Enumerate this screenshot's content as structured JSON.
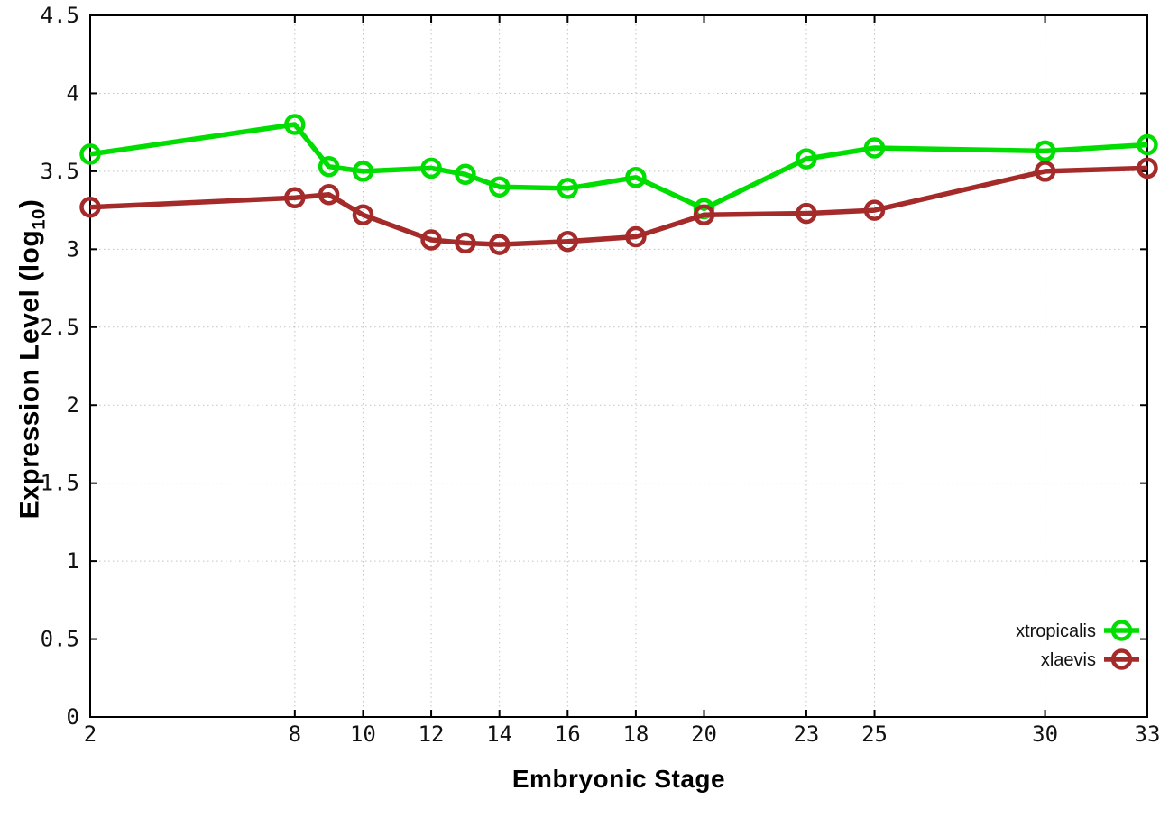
{
  "chart_data": {
    "type": "line",
    "title": "",
    "xlabel": "Embryonic Stage",
    "ylabel_parts": {
      "prefix": "Expression Level (log",
      "sub": "10",
      "suffix": ")"
    },
    "x": [
      2,
      8,
      9,
      10,
      12,
      13,
      14,
      16,
      18,
      20,
      23,
      25,
      30,
      33
    ],
    "x_tick_labels": [
      "2",
      "8",
      "10",
      "12",
      "14",
      "16",
      "18",
      "20",
      "23",
      "25",
      "30",
      "33"
    ],
    "x_ticks": [
      2,
      8,
      10,
      12,
      14,
      16,
      18,
      20,
      23,
      25,
      30,
      33
    ],
    "xlim": [
      2,
      33
    ],
    "y_tick_labels": [
      "0",
      "0.5",
      "1",
      "1.5",
      "2",
      "2.5",
      "3",
      "3.5",
      "4",
      "4.5"
    ],
    "y_ticks": [
      0,
      0.5,
      1,
      1.5,
      2,
      2.5,
      3,
      3.5,
      4,
      4.5
    ],
    "ylim": [
      0,
      4.5
    ],
    "grid": true,
    "legend_position": "bottom-right",
    "series": [
      {
        "name": "xtropicalis",
        "color": "#00dd00",
        "values": [
          3.61,
          3.8,
          3.53,
          3.5,
          3.52,
          3.48,
          3.4,
          3.39,
          3.46,
          3.26,
          3.58,
          3.65,
          3.63,
          3.67
        ]
      },
      {
        "name": "xlaevis",
        "color": "#a52a2a",
        "values": [
          3.27,
          3.33,
          3.35,
          3.22,
          3.06,
          3.04,
          3.03,
          3.05,
          3.08,
          3.22,
          3.23,
          3.25,
          3.5,
          3.52
        ]
      }
    ]
  },
  "colors": {
    "background": "#ffffff",
    "grid": "#c3c3c3",
    "axis": "#000000",
    "text": "#111111"
  }
}
